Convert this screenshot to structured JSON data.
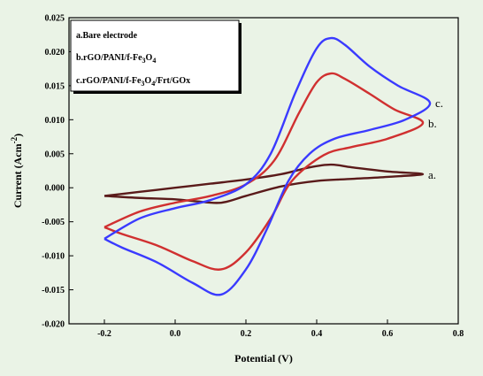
{
  "chart_data": {
    "type": "line",
    "xlabel": "Potential (V)",
    "ylabel_main": "Current (Acm",
    "ylabel_sup": "-2",
    "ylabel_end": ")",
    "xlim": [
      -0.3,
      0.8
    ],
    "ylim": [
      -0.02,
      0.025
    ],
    "xticks": [
      -0.2,
      0.0,
      0.2,
      0.4,
      0.6,
      0.8
    ],
    "xtick_labels": [
      "-0.2",
      "0.0",
      "0.2",
      "0.4",
      "0.6",
      "0.8"
    ],
    "yticks": [
      -0.02,
      -0.015,
      -0.01,
      -0.005,
      0.0,
      0.005,
      0.01,
      0.015,
      0.02,
      0.025
    ],
    "ytick_labels": [
      "-0.020",
      "-0.015",
      "-0.010",
      "-0.005",
      "0.000",
      "0.005",
      "0.010",
      "0.015",
      "0.020",
      "0.025"
    ],
    "grid": false,
    "legend_position": "top-left",
    "legend": [
      {
        "parts": [
          {
            "t": "a.Bare electrode"
          }
        ]
      },
      {
        "parts": [
          {
            "t": "b.rGO/PANI/f-Fe"
          },
          {
            "t": "3",
            "sub": true
          },
          {
            "t": "O"
          },
          {
            "t": "4",
            "sub": true
          }
        ]
      },
      {
        "parts": [
          {
            "t": "c.rGO/PANI/f-Fe"
          },
          {
            "t": "3",
            "sub": true
          },
          {
            "t": "O"
          },
          {
            "t": "4",
            "sub": true
          },
          {
            "t": "/Frt/GOx"
          }
        ]
      }
    ],
    "series": [
      {
        "label": "a.",
        "color": "#5a1a1a",
        "points": [
          [
            -0.2,
            -0.0012
          ],
          [
            -0.1,
            -0.0006
          ],
          [
            0.0,
            0.0
          ],
          [
            0.1,
            0.0006
          ],
          [
            0.2,
            0.0012
          ],
          [
            0.3,
            0.002
          ],
          [
            0.38,
            0.003
          ],
          [
            0.44,
            0.0034
          ],
          [
            0.5,
            0.003
          ],
          [
            0.6,
            0.0024
          ],
          [
            0.7,
            0.002
          ],
          [
            0.6,
            0.0016
          ],
          [
            0.5,
            0.0013
          ],
          [
            0.4,
            0.001
          ],
          [
            0.3,
            0.0002
          ],
          [
            0.2,
            -0.0012
          ],
          [
            0.13,
            -0.0022
          ],
          [
            0.06,
            -0.002
          ],
          [
            0.0,
            -0.0017
          ],
          [
            -0.1,
            -0.0015
          ],
          [
            -0.2,
            -0.0012
          ]
        ]
      },
      {
        "label": "b.",
        "color": "#d03030",
        "points": [
          [
            -0.2,
            -0.0058
          ],
          [
            -0.1,
            -0.0035
          ],
          [
            0.0,
            -0.0022
          ],
          [
            0.1,
            -0.0012
          ],
          [
            0.2,
            0.0005
          ],
          [
            0.28,
            0.004
          ],
          [
            0.35,
            0.011
          ],
          [
            0.4,
            0.0155
          ],
          [
            0.44,
            0.0168
          ],
          [
            0.48,
            0.016
          ],
          [
            0.55,
            0.0138
          ],
          [
            0.62,
            0.0115
          ],
          [
            0.7,
            0.0095
          ],
          [
            0.6,
            0.0072
          ],
          [
            0.5,
            0.006
          ],
          [
            0.42,
            0.0048
          ],
          [
            0.33,
            0.001
          ],
          [
            0.27,
            -0.0045
          ],
          [
            0.2,
            -0.0095
          ],
          [
            0.13,
            -0.012
          ],
          [
            0.05,
            -0.0108
          ],
          [
            -0.05,
            -0.0085
          ],
          [
            -0.15,
            -0.0068
          ],
          [
            -0.2,
            -0.0058
          ]
        ]
      },
      {
        "label": "c.",
        "color": "#3a3aff",
        "points": [
          [
            -0.2,
            -0.0075
          ],
          [
            -0.1,
            -0.0045
          ],
          [
            0.0,
            -0.003
          ],
          [
            0.1,
            -0.0018
          ],
          [
            0.2,
            0.0005
          ],
          [
            0.27,
            0.005
          ],
          [
            0.34,
            0.014
          ],
          [
            0.4,
            0.0205
          ],
          [
            0.44,
            0.022
          ],
          [
            0.48,
            0.021
          ],
          [
            0.55,
            0.0178
          ],
          [
            0.63,
            0.015
          ],
          [
            0.72,
            0.0125
          ],
          [
            0.65,
            0.01
          ],
          [
            0.55,
            0.0085
          ],
          [
            0.45,
            0.0072
          ],
          [
            0.38,
            0.005
          ],
          [
            0.32,
            0.001
          ],
          [
            0.26,
            -0.006
          ],
          [
            0.2,
            -0.012
          ],
          [
            0.13,
            -0.0157
          ],
          [
            0.05,
            -0.014
          ],
          [
            -0.05,
            -0.011
          ],
          [
            -0.15,
            -0.0088
          ],
          [
            -0.2,
            -0.0075
          ]
        ]
      }
    ]
  }
}
